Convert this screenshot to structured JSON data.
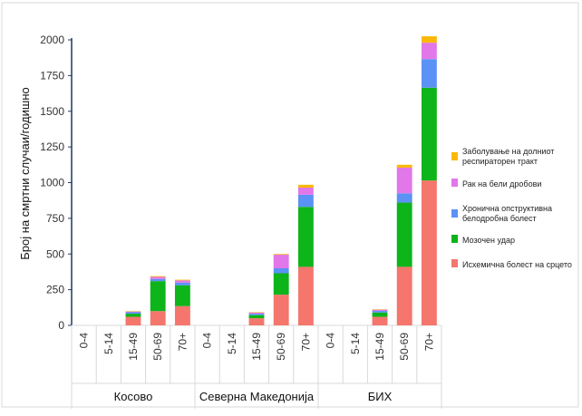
{
  "chart_data": {
    "type": "bar",
    "stacked": true,
    "ylabel": "Број на смртни случаи/годишно",
    "xlabel": "",
    "ylim": [
      0,
      2000
    ],
    "yticks": [
      0,
      250,
      500,
      750,
      1000,
      1250,
      1500,
      1750,
      2000
    ],
    "grid": false,
    "legend_position": "right",
    "groups": [
      {
        "name": "Косово",
        "categories": [
          "0-4",
          "5-14",
          "15-49",
          "50-69",
          "70+"
        ]
      },
      {
        "name": "Северна Македонија",
        "categories": [
          "0-4",
          "5-14",
          "15-49",
          "50-69",
          "70+"
        ]
      },
      {
        "name": "БИХ",
        "categories": [
          "0-4",
          "5-14",
          "15-49",
          "50-69",
          "70+"
        ]
      }
    ],
    "series": [
      {
        "name": "Исхемична болест на срцето",
        "color": "#f4766c",
        "values": [
          0,
          0,
          60,
          100,
          135,
          0,
          0,
          50,
          215,
          410,
          0,
          0,
          60,
          410,
          1015
        ]
      },
      {
        "name": "Мозочен удар",
        "color": "#0db41a",
        "values": [
          0,
          0,
          22,
          210,
          145,
          0,
          0,
          22,
          150,
          420,
          0,
          0,
          30,
          450,
          650
        ]
      },
      {
        "name": "Хронична опструктивна белодробна болест",
        "color": "#5a92f5",
        "values": [
          0,
          0,
          10,
          15,
          20,
          0,
          0,
          10,
          35,
          85,
          0,
          0,
          12,
          65,
          200
        ]
      },
      {
        "name": "Рак на бели дробови",
        "color": "#e177e8",
        "values": [
          0,
          0,
          5,
          15,
          15,
          0,
          0,
          8,
          95,
          50,
          0,
          0,
          8,
          180,
          115
        ]
      },
      {
        "name": "Заболување на долниот респираторен тракт",
        "color": "#fbb80a",
        "values": [
          0,
          0,
          3,
          5,
          5,
          0,
          0,
          3,
          5,
          20,
          0,
          0,
          3,
          20,
          45
        ]
      }
    ],
    "legend_order": [
      "Заболување на долниот респираторен тракт",
      "Рак на бели дробови",
      "Хронична опструктивна белодробна болест",
      "Мозочен удар",
      "Исхемична болест на срцето"
    ]
  }
}
